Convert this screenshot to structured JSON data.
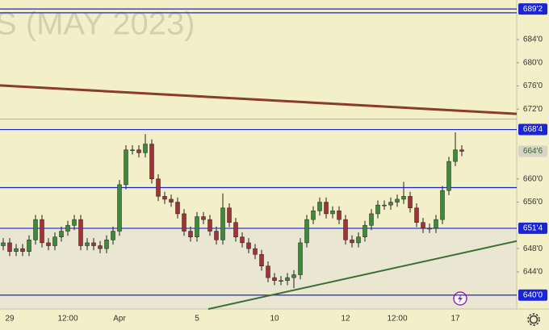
{
  "chart_data": {
    "type": "candlestick",
    "watermark": "S (MAY 2023)",
    "categories": [
      null,
      "29",
      null,
      null,
      null,
      null,
      null,
      null,
      null,
      null,
      "12:00",
      null,
      null,
      null,
      null,
      null,
      null,
      null,
      "Apr",
      null,
      null,
      null,
      null,
      null,
      null,
      null,
      null,
      null,
      null,
      null,
      "5",
      null,
      null,
      null,
      null,
      null,
      null,
      null,
      null,
      null,
      null,
      null,
      "10",
      null,
      null,
      null,
      null,
      null,
      null,
      null,
      null,
      null,
      null,
      "12",
      null,
      null,
      null,
      null,
      null,
      null,
      null,
      "12:00",
      null,
      null,
      null,
      null,
      null,
      null,
      null,
      null,
      "17",
      null
    ],
    "open": [
      648.5,
      649,
      647.5,
      648,
      647.5,
      649.5,
      653,
      649,
      648.5,
      650,
      651,
      652,
      653,
      648.5,
      649,
      648.5,
      648,
      649.5,
      651,
      659,
      665,
      665,
      664.5,
      666,
      660,
      657,
      656.5,
      656,
      654,
      651,
      650,
      653.5,
      653,
      651,
      649.5,
      655,
      652.5,
      650,
      649,
      648,
      647,
      645,
      643,
      642.5,
      642.5,
      643,
      643.5,
      649,
      653,
      654.5,
      656,
      654,
      654.5,
      653,
      649.5,
      649,
      650,
      652,
      654,
      655.5,
      655.5,
      656,
      656.5,
      657,
      655,
      652.5,
      651.5,
      651.5,
      653,
      658,
      663,
      665
    ],
    "high": [
      649.8,
      649.8,
      648.8,
      648.8,
      650.3,
      653.8,
      653.8,
      649.8,
      650.8,
      651.8,
      652.8,
      653.8,
      653.8,
      649.8,
      649.8,
      649.3,
      650.3,
      651.8,
      659.8,
      665.8,
      665.8,
      665.8,
      667.7,
      666.8,
      660.8,
      657.8,
      657.3,
      656.8,
      654.8,
      651.8,
      654.3,
      654.3,
      653.8,
      651.8,
      657.5,
      655.8,
      653.3,
      650.8,
      649.8,
      648.8,
      647.8,
      645.8,
      643.8,
      643.3,
      643.8,
      644.3,
      649.8,
      653.8,
      655.3,
      656.8,
      656.8,
      655.3,
      655.3,
      653.8,
      650.3,
      650.8,
      652.8,
      654.8,
      656.3,
      656.3,
      656.8,
      657.3,
      659.5,
      657.8,
      655.8,
      653.3,
      652.3,
      653.8,
      658.8,
      663.8,
      668,
      665.8
    ],
    "low": [
      647.7,
      646.7,
      646.7,
      646.7,
      646.7,
      648.7,
      648.2,
      647.7,
      647.7,
      649.2,
      650.2,
      651.2,
      647.7,
      647.7,
      647.7,
      647.2,
      647.2,
      648.7,
      650.2,
      658.2,
      664.2,
      663.7,
      663.7,
      659.2,
      656.2,
      655.7,
      655.2,
      653.2,
      650.2,
      649.2,
      649.2,
      652.2,
      650.2,
      648.7,
      648.7,
      651.7,
      649.2,
      648.2,
      647.2,
      646.2,
      644.2,
      642.2,
      641.7,
      641.7,
      641.7,
      641.2,
      642.7,
      648.2,
      652.2,
      653.7,
      653.2,
      653.2,
      652.2,
      648.7,
      648.2,
      648.2,
      649.2,
      651.2,
      653.2,
      654.7,
      654.7,
      655.2,
      655.7,
      654.2,
      651.7,
      650.7,
      650.7,
      650.7,
      652.2,
      657.2,
      662.2,
      663.9
    ],
    "close": [
      649,
      647.5,
      648,
      647.5,
      649.5,
      653,
      649,
      648.5,
      650,
      651,
      652,
      653,
      648.5,
      649,
      648.5,
      648,
      649.5,
      651,
      659,
      665,
      665,
      664.5,
      666,
      660,
      657,
      656.5,
      656,
      654,
      651,
      650,
      653.5,
      653,
      651,
      649.5,
      655,
      652.5,
      650,
      649,
      648,
      647,
      645,
      643,
      642.5,
      642.5,
      643,
      643.5,
      649,
      653,
      654.5,
      656,
      654,
      654.5,
      653,
      649.5,
      649,
      650,
      652,
      654,
      655.5,
      655.5,
      656,
      656.5,
      657,
      655,
      652.5,
      651.5,
      651.5,
      653,
      658,
      663,
      665,
      664.75
    ],
    "up_color": "#3f8a3a",
    "down_color": "#a33232",
    "xlim": [
      -0.5,
      79.5
    ],
    "ylim": [
      637.6,
      690.8
    ],
    "yticks": [
      {
        "value": 644,
        "label": "644'0"
      },
      {
        "value": 648,
        "label": "648'0"
      },
      {
        "value": 656,
        "label": "656'0"
      },
      {
        "value": 660,
        "label": "660'0"
      },
      {
        "value": 672,
        "label": "672'0"
      },
      {
        "value": 676,
        "label": "676'0"
      },
      {
        "value": 680,
        "label": "680'0"
      },
      {
        "value": 684,
        "label": "684'0"
      }
    ],
    "levels": [
      {
        "value": 689.25,
        "label": "689'2"
      },
      {
        "value": 668.5,
        "label": "668'4"
      },
      {
        "value": 651.5,
        "label": "651'4"
      },
      {
        "value": 640,
        "label": "640'0"
      }
    ],
    "level_color": "#1b25d4",
    "plain_levels": [
      688.6,
      658.5
    ],
    "green_level": {
      "value": 670.3,
      "color": "#7fd08a"
    },
    "last_price": {
      "value": 664.75,
      "label": "664'6"
    },
    "trendlines": [
      {
        "color": "#8b3b2b",
        "x": [
          -0.5,
          79.5
        ],
        "y": [
          676.1,
          671.2
        ]
      },
      {
        "color": "#3b6e35",
        "x": [
          31.75,
          79.5
        ],
        "y": [
          637.6,
          649.3
        ]
      }
    ]
  }
}
